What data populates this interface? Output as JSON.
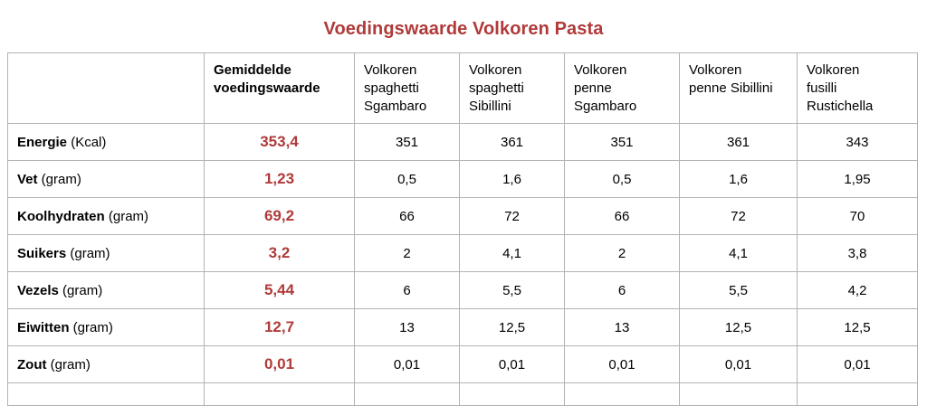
{
  "title": "Voedingswaarde Volkoren Pasta",
  "table": {
    "header": {
      "corner": "",
      "average_label": [
        "Gemiddelde",
        "voedingswaarde"
      ],
      "products": [
        [
          "Volkoren",
          "spaghetti",
          "Sgambaro"
        ],
        [
          "Volkoren",
          "spaghetti",
          "Sibillini"
        ],
        [
          "Volkoren",
          "penne",
          "Sgambaro"
        ],
        [
          "Volkoren",
          "penne Sibillini"
        ],
        [
          "Volkoren",
          "fusilli",
          "Rustichella"
        ]
      ]
    },
    "rows": [
      {
        "name": "Energie",
        "unit": " (Kcal)",
        "average": "353,4",
        "values": [
          "351",
          "361",
          "351",
          "361",
          "343"
        ]
      },
      {
        "name": "Vet",
        "unit": " (gram)",
        "average": "1,23",
        "values": [
          "0,5",
          "1,6",
          "0,5",
          "1,6",
          "1,95"
        ]
      },
      {
        "name": "Koolhydraten",
        "unit": " (gram)",
        "average": "69,2",
        "values": [
          "66",
          "72",
          "66",
          "72",
          "70"
        ]
      },
      {
        "name": "Suikers",
        "unit": " (gram)",
        "average": "3,2",
        "values": [
          "2",
          "4,1",
          "2",
          "4,1",
          "3,8"
        ]
      },
      {
        "name": "Vezels",
        "unit": " (gram)",
        "average": "5,44",
        "values": [
          "6",
          "5,5",
          "6",
          "5,5",
          "4,2"
        ]
      },
      {
        "name": "Eiwitten",
        "unit": " (gram)",
        "average": "12,7",
        "values": [
          "13",
          "12,5",
          "13",
          "12,5",
          "12,5"
        ]
      },
      {
        "name": "Zout",
        "unit": " (gram)",
        "average": "0,01",
        "values": [
          "0,01",
          "0,01",
          "0,01",
          "0,01",
          "0,01"
        ]
      }
    ]
  },
  "colors": {
    "accent": "#b03a3a",
    "border": "#b3b3b3"
  }
}
